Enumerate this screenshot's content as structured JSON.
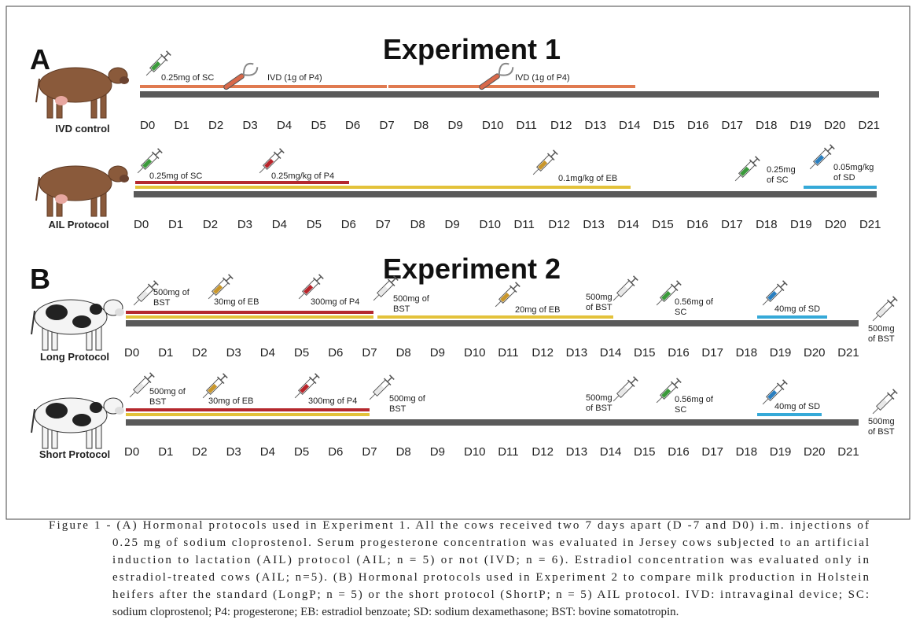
{
  "panels": [
    {
      "letter": "A",
      "title": "Experiment 1",
      "rows": [
        {
          "label": "IVD control",
          "annotations": [
            [
              "0.25mg of SC"
            ],
            [
              "IVD (1g of P4)"
            ],
            [
              "IVD (1g of P4)"
            ]
          ]
        },
        {
          "label": "AIL Protocol",
          "annotations": [
            [
              "0.25mg of SC"
            ],
            [
              "0.25mg/kg of P4"
            ],
            [
              "0.1mg/kg of EB"
            ],
            [
              "0.25mg",
              "of SC"
            ],
            [
              "0.05mg/kg",
              "of SD"
            ]
          ]
        }
      ]
    },
    {
      "letter": "B",
      "title": "Experiment 2",
      "rows": [
        {
          "label": "Long Protocol",
          "annotations": [
            [
              "500mg of",
              "BST"
            ],
            [
              "30mg of EB"
            ],
            [
              "300mg of P4"
            ],
            [
              "500mg of",
              "BST"
            ],
            [
              "20mg of EB"
            ],
            [
              "500mg",
              "of BST"
            ],
            [
              "0.56mg of",
              "SC"
            ],
            [
              "40mg of SD"
            ],
            [
              "500mg",
              "of BST"
            ]
          ]
        },
        {
          "label": "Short Protocol",
          "annotations": [
            [
              "500mg of",
              "BST"
            ],
            [
              "30mg of EB"
            ],
            [
              "300mg of P4"
            ],
            [
              "500mg of",
              "BST"
            ],
            [
              "500mg",
              "of BST"
            ],
            [
              "0.56mg of",
              "SC"
            ],
            [
              "40mg of SD"
            ],
            [
              "500mg",
              "of BST"
            ]
          ]
        }
      ]
    }
  ],
  "days": [
    "D0",
    "D1",
    "D2",
    "D3",
    "D4",
    "D5",
    "D6",
    "D7",
    "D8",
    "D9",
    "D10",
    "D11",
    "D12",
    "D13",
    "D14",
    "D15",
    "D16",
    "D17",
    "D18",
    "D19",
    "D20",
    "D21"
  ],
  "caption": [
    "Figure 1 - (A) Hormonal protocols used in Experiment 1. All the cows received two 7 days apart (D -7 and D0) i.m. injections of",
    "0.25 mg of sodium cloprostenol. Serum progesterone concentration was evaluated in Jersey cows subjected to an artificial",
    "induction to lactation (AIL) protocol (AIL; n = 5) or not (IVD; n = 6). Estradiol concentration was evaluated only in",
    "estradiol-treated cows (AIL; n=5). (B) Hormonal protocols used in Experiment 2 to compare milk production in Holstein",
    "heifers after the standard (LongP; n = 5) or the short protocol (ShortP; n = 5) AIL protocol. IVD: intravaginal device; SC:",
    "sodium cloprostenol; P4: progesterone; EB: estradiol benzoate; SD: sodium dexamethasone; BST: bovine somatotropin."
  ]
}
